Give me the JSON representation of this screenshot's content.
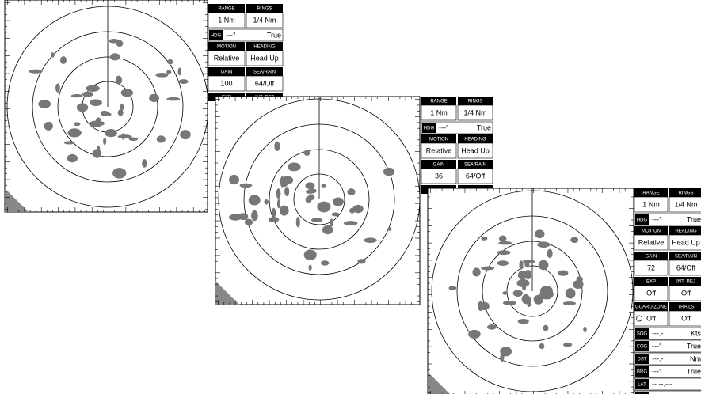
{
  "displays": [
    {
      "rows": [
        {
          "headers": [
            "RANGE",
            "RINGS"
          ],
          "values": [
            "1 Nm",
            "1/4 Nm"
          ]
        },
        {
          "label": "HDG",
          "value": "---°",
          "unit": "True"
        },
        {
          "headers": [
            "MOTION",
            "HEADING"
          ],
          "values": [
            "Relative",
            "Head Up"
          ]
        },
        {
          "headers": [
            "GAIN",
            "SEA/RAIN"
          ],
          "values": [
            "100",
            "64/Off"
          ]
        },
        {
          "headers": [
            "EXP",
            "INT. REJ"
          ]
        }
      ]
    },
    {
      "rows": [
        {
          "headers": [
            "RANGE",
            "RINGS"
          ],
          "values": [
            "1 Nm",
            "1/4 Nm"
          ]
        },
        {
          "label": "HDG",
          "value": "---°",
          "unit": "True"
        },
        {
          "headers": [
            "MOTION",
            "HEADING"
          ],
          "values": [
            "Relative",
            "Head Up"
          ]
        },
        {
          "headers": [
            "GAIN",
            "SEA/RAIN"
          ],
          "values": [
            "36",
            "64/Off"
          ]
        },
        {
          "headers": [
            "EXP",
            "INT. REJ"
          ]
        }
      ]
    },
    {
      "rows": [
        {
          "headers": [
            "RANGE",
            "RINGS"
          ],
          "values": [
            "1 Nm",
            "1/4 Nm"
          ]
        },
        {
          "label": "HDG",
          "value": "---°",
          "unit": "True"
        },
        {
          "headers": [
            "MOTION",
            "HEADING"
          ],
          "values": [
            "Relative",
            "Head Up"
          ]
        },
        {
          "headers": [
            "GAIN",
            "SEA/RAIN"
          ],
          "values": [
            "72",
            "64/Off"
          ]
        },
        {
          "headers": [
            "EXP",
            "INT. REJ"
          ],
          "values": [
            "Off",
            "Off"
          ]
        },
        {
          "headers": [
            "GUARD ZONE",
            "TRAILS"
          ],
          "values": [
            "Off",
            "Off"
          ]
        },
        {
          "label": "SOG",
          "value": "---.-",
          "unit": "Kts"
        },
        {
          "label": "COG",
          "value": "---°",
          "unit": "True"
        },
        {
          "label": "DST",
          "value": "---.-",
          "unit": "Nm"
        },
        {
          "label": "BRG",
          "value": "---°",
          "unit": "True"
        },
        {
          "label": "LAT",
          "value": "-- --.---"
        },
        {
          "label": "LON",
          "value": "--- --.---"
        }
      ]
    }
  ]
}
